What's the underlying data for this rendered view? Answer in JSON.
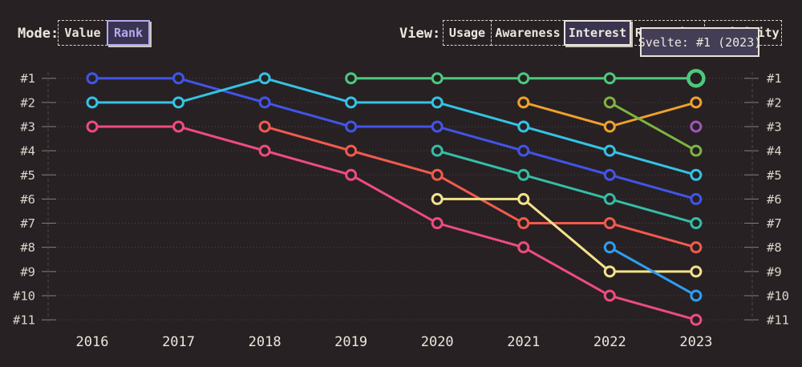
{
  "header": {
    "mode_label": "Mode:",
    "mode_options": [
      {
        "label": "Value",
        "active": false
      },
      {
        "label": "Rank",
        "active": true
      }
    ],
    "view_label": "View:",
    "view_options": [
      {
        "label": "Usage",
        "active": false
      },
      {
        "label": "Awareness",
        "active": false
      },
      {
        "label": "Interest",
        "active": true
      },
      {
        "label": "Retention",
        "active": false
      },
      {
        "label": "Positivity",
        "active": false
      }
    ],
    "tooltip": "Svelte: #1 (2023)"
  },
  "colors": {
    "background": "#272124",
    "text": "#ece7dc",
    "axis_text": "#dbd5c9",
    "grid": "#4b4646",
    "tick": "#847e79",
    "active_button_bg": "#3a3450",
    "active_rank_text": "#b6a9f2",
    "tooltip_bg": "#433d56",
    "tooltip_border": "#e9e3d8"
  },
  "chart_data": {
    "type": "line",
    "subtype": "bump-rank-chart",
    "x_labels": [
      "2016",
      "2017",
      "2018",
      "2019",
      "2020",
      "2021",
      "2022",
      "2023"
    ],
    "rank_labels": [
      "#1",
      "#2",
      "#3",
      "#4",
      "#5",
      "#6",
      "#7",
      "#8",
      "#9",
      "#10",
      "#11"
    ],
    "ylim": [
      1,
      11
    ],
    "y_inverted": true,
    "grid": "dotted-horizontal",
    "legend": "none",
    "series": [
      {
        "name": "blue",
        "color": "#4254e8",
        "ranks": [
          1,
          1,
          2,
          3,
          3,
          4,
          5,
          6
        ]
      },
      {
        "name": "cyan",
        "color": "#34c3e4",
        "ranks": [
          2,
          2,
          1,
          2,
          2,
          3,
          4,
          5
        ]
      },
      {
        "name": "pink",
        "color": "#ee4c7d",
        "ranks": [
          3,
          3,
          4,
          5,
          7,
          8,
          10,
          11
        ]
      },
      {
        "name": "coral",
        "color": "#f25a4e",
        "ranks": [
          null,
          null,
          3,
          4,
          5,
          7,
          7,
          8
        ]
      },
      {
        "name": "Svelte",
        "color": "#4dc97c",
        "ranks": [
          null,
          null,
          null,
          1,
          1,
          1,
          1,
          1
        ]
      },
      {
        "name": "teal",
        "color": "#35bda4",
        "ranks": [
          null,
          null,
          null,
          null,
          4,
          5,
          6,
          7
        ]
      },
      {
        "name": "yellow",
        "color": "#f4e289",
        "ranks": [
          null,
          null,
          null,
          null,
          6,
          6,
          9,
          9
        ]
      },
      {
        "name": "orange",
        "color": "#efa12b",
        "ranks": [
          null,
          null,
          null,
          null,
          null,
          2,
          3,
          2
        ]
      },
      {
        "name": "lime",
        "color": "#7eb441",
        "ranks": [
          null,
          null,
          null,
          null,
          null,
          null,
          2,
          4
        ]
      },
      {
        "name": "sky-blue",
        "color": "#2d9ef2",
        "ranks": [
          null,
          null,
          null,
          null,
          null,
          null,
          8,
          10
        ]
      },
      {
        "name": "purple",
        "color": "#a155bb",
        "ranks": [
          null,
          null,
          null,
          null,
          null,
          null,
          null,
          3
        ]
      }
    ],
    "highlight": {
      "series": "Svelte",
      "x_label": "2023",
      "rank": 1
    }
  }
}
